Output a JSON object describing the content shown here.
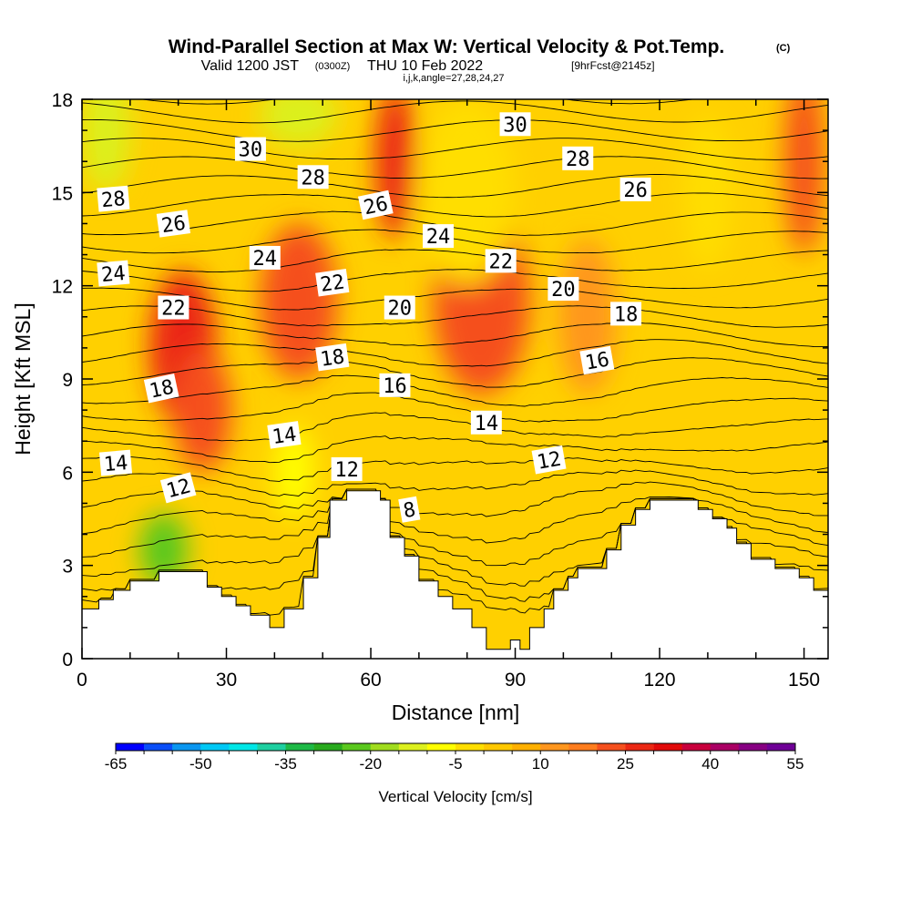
{
  "header": {
    "title": "Wind-Parallel Section at Max W: Vertical Velocity & Pot.Temp.",
    "title_units": "(C)",
    "valid_prefix": "Valid 1200 JST",
    "valid_utc": "(0300Z)",
    "valid_date": "THU 10 Feb 2022",
    "forecast": "[9hrFcst@2145z]",
    "params": "i,j,k,angle=27,28,24,27"
  },
  "colors": {
    "bands": [
      "#0000ff",
      "#0a4ef8",
      "#0a96f0",
      "#00c8f5",
      "#00e6e6",
      "#1ecfa0",
      "#1eb946",
      "#28aa1e",
      "#5ac81e",
      "#a0dc1e",
      "#dcf01e",
      "#ffff00",
      "#ffde00",
      "#ffc800",
      "#ffb000",
      "#ff961e",
      "#ff7d1e",
      "#f5501e",
      "#eb2814",
      "#e10a0a",
      "#c8003c",
      "#aa0064",
      "#870082",
      "#6e0096"
    ],
    "terrain": "#ffffff",
    "contour": "#000000"
  },
  "chart_data": {
    "type": "heatmap",
    "xlabel": "Distance [nm]",
    "ylabel": "Height [Kft MSL]",
    "xlim": [
      0,
      155
    ],
    "ylim": [
      0,
      18
    ],
    "xticks": [
      0,
      30,
      60,
      90,
      120,
      150
    ],
    "yticks": [
      0,
      3,
      6,
      9,
      12,
      15,
      18
    ],
    "colorbar": {
      "label": "Vertical Velocity [cm/s]",
      "min": -65,
      "max": 55,
      "step": 5,
      "tick_values": [
        -65,
        -50,
        -35,
        -20,
        -5,
        10,
        25,
        40,
        55
      ],
      "tick_labels": [
        "-65",
        "-50",
        "-35",
        "-20",
        "-5",
        "10",
        "25",
        "40",
        "55"
      ]
    },
    "terrain_profile": [
      [
        0,
        1.6
      ],
      [
        3.5,
        1.6
      ],
      [
        3.5,
        1.9
      ],
      [
        6.5,
        1.9
      ],
      [
        6.5,
        2.2
      ],
      [
        10,
        2.2
      ],
      [
        10,
        2.5
      ],
      [
        16,
        2.5
      ],
      [
        16,
        2.8
      ],
      [
        26,
        2.8
      ],
      [
        26,
        2.3
      ],
      [
        29,
        2.3
      ],
      [
        29,
        2.0
      ],
      [
        32,
        2.0
      ],
      [
        32,
        1.7
      ],
      [
        35,
        1.7
      ],
      [
        35,
        1.4
      ],
      [
        39,
        1.4
      ],
      [
        39,
        1.0
      ],
      [
        42,
        1.0
      ],
      [
        42,
        1.6
      ],
      [
        46,
        1.6
      ],
      [
        46,
        2.6
      ],
      [
        49,
        2.6
      ],
      [
        49,
        3.9
      ],
      [
        51.5,
        3.9
      ],
      [
        51.5,
        5.1
      ],
      [
        55,
        5.1
      ],
      [
        55,
        5.4
      ],
      [
        62,
        5.4
      ],
      [
        62,
        5.1
      ],
      [
        64,
        5.1
      ],
      [
        64,
        3.9
      ],
      [
        67,
        3.9
      ],
      [
        67,
        3.3
      ],
      [
        70,
        3.3
      ],
      [
        70,
        2.5
      ],
      [
        74,
        2.5
      ],
      [
        74,
        2.0
      ],
      [
        77,
        2.0
      ],
      [
        77,
        1.6
      ],
      [
        81,
        1.6
      ],
      [
        81,
        1.0
      ],
      [
        84,
        1.0
      ],
      [
        84,
        0.3
      ],
      [
        89,
        0.3
      ],
      [
        89,
        0.6
      ],
      [
        91,
        0.6
      ],
      [
        91,
        0.3
      ],
      [
        93,
        0.3
      ],
      [
        93,
        1.0
      ],
      [
        96,
        1.0
      ],
      [
        96,
        1.6
      ],
      [
        98,
        1.6
      ],
      [
        98,
        2.2
      ],
      [
        101,
        2.2
      ],
      [
        101,
        2.6
      ],
      [
        103,
        2.6
      ],
      [
        103,
        2.9
      ],
      [
        109,
        2.9
      ],
      [
        109,
        3.5
      ],
      [
        112,
        3.5
      ],
      [
        112,
        4.3
      ],
      [
        115,
        4.3
      ],
      [
        115,
        4.8
      ],
      [
        118,
        4.8
      ],
      [
        118,
        5.1
      ],
      [
        128,
        5.1
      ],
      [
        128,
        4.8
      ],
      [
        131,
        4.8
      ],
      [
        131,
        4.5
      ],
      [
        134,
        4.5
      ],
      [
        134,
        4.2
      ],
      [
        136,
        4.2
      ],
      [
        136,
        3.7
      ],
      [
        139,
        3.7
      ],
      [
        139,
        3.2
      ],
      [
        144,
        3.2
      ],
      [
        144,
        2.9
      ],
      [
        149,
        2.9
      ],
      [
        149,
        2.6
      ],
      [
        152,
        2.6
      ],
      [
        152,
        2.2
      ],
      [
        155,
        2.2
      ]
    ],
    "field_features": [
      {
        "name": "updraft",
        "x": 21,
        "y": 10.0,
        "rx": 7,
        "ry": 2.5,
        "value": 28
      },
      {
        "name": "updraft",
        "x": 25,
        "y": 8.0,
        "rx": 6,
        "ry": 2.0,
        "value": 20
      },
      {
        "name": "updraft",
        "x": 45,
        "y": 11.5,
        "rx": 8,
        "ry": 2.5,
        "value": 20
      },
      {
        "name": "updraft",
        "x": 65,
        "y": 16.0,
        "rx": 4,
        "ry": 2.5,
        "value": 25
      },
      {
        "name": "updraft",
        "x": 83,
        "y": 11.5,
        "rx": 10,
        "ry": 3.0,
        "value": 20
      },
      {
        "name": "updraft",
        "x": 105,
        "y": 11.0,
        "rx": 6,
        "ry": 2.5,
        "value": 14
      },
      {
        "name": "updraft",
        "x": 150,
        "y": 16.0,
        "rx": 4,
        "ry": 3.0,
        "value": 20
      },
      {
        "name": "downdraft",
        "x": 17,
        "y": 3.5,
        "rx": 5,
        "ry": 1.2,
        "value": -25
      },
      {
        "name": "downdraft",
        "x": 5,
        "y": 17.0,
        "rx": 5,
        "ry": 2.0,
        "value": -12
      },
      {
        "name": "downdraft",
        "x": 45,
        "y": 17.5,
        "rx": 8,
        "ry": 1.0,
        "value": -14
      },
      {
        "name": "downdraft",
        "x": 80,
        "y": 15.0,
        "rx": 10,
        "ry": 3.0,
        "value": -5
      },
      {
        "name": "downdraft",
        "x": 130,
        "y": 15.0,
        "rx": 5,
        "ry": 2.5,
        "value": -5
      },
      {
        "name": "downdraft",
        "x": 44,
        "y": 6.0,
        "rx": 4,
        "ry": 1.5,
        "value": -8
      }
    ],
    "isentrope_values": [
      4,
      5,
      6,
      7,
      8,
      9,
      10,
      11,
      12,
      13,
      14,
      15,
      16,
      17,
      18,
      19,
      20,
      21,
      22,
      23,
      24,
      25,
      26,
      27,
      28,
      29,
      30,
      31
    ],
    "contour_labels": [
      {
        "text": "30",
        "x": 35,
        "y": 16.4,
        "angle": 0
      },
      {
        "text": "28",
        "x": 48,
        "y": 15.5,
        "angle": 0
      },
      {
        "text": "28",
        "x": 6.5,
        "y": 14.8,
        "angle": -5
      },
      {
        "text": "26",
        "x": 19,
        "y": 14.0,
        "angle": -8
      },
      {
        "text": "26",
        "x": 61,
        "y": 14.6,
        "angle": -12
      },
      {
        "text": "30",
        "x": 90,
        "y": 17.2,
        "angle": 0
      },
      {
        "text": "28",
        "x": 103,
        "y": 16.1,
        "angle": 0
      },
      {
        "text": "26",
        "x": 115,
        "y": 15.1,
        "angle": 0
      },
      {
        "text": "24",
        "x": 6.5,
        "y": 12.4,
        "angle": -5
      },
      {
        "text": "24",
        "x": 38,
        "y": 12.9,
        "angle": 0
      },
      {
        "text": "24",
        "x": 74,
        "y": 13.6,
        "angle": 0
      },
      {
        "text": "22",
        "x": 19,
        "y": 11.3,
        "angle": 0
      },
      {
        "text": "22",
        "x": 52,
        "y": 12.1,
        "angle": -8
      },
      {
        "text": "22",
        "x": 87,
        "y": 12.8,
        "angle": 0
      },
      {
        "text": "20",
        "x": 66,
        "y": 11.3,
        "angle": 0
      },
      {
        "text": "20",
        "x": 100,
        "y": 11.9,
        "angle": 0
      },
      {
        "text": "18",
        "x": 113,
        "y": 11.1,
        "angle": 0
      },
      {
        "text": "18",
        "x": 52,
        "y": 9.7,
        "angle": -8
      },
      {
        "text": "18",
        "x": 16.5,
        "y": 8.7,
        "angle": -12
      },
      {
        "text": "16",
        "x": 65,
        "y": 8.8,
        "angle": 0
      },
      {
        "text": "16",
        "x": 107,
        "y": 9.6,
        "angle": -10
      },
      {
        "text": "14",
        "x": 84,
        "y": 7.6,
        "angle": 0
      },
      {
        "text": "14",
        "x": 42,
        "y": 7.2,
        "angle": -8
      },
      {
        "text": "14",
        "x": 7,
        "y": 6.3,
        "angle": -5
      },
      {
        "text": "12",
        "x": 55,
        "y": 6.1,
        "angle": 0
      },
      {
        "text": "12",
        "x": 97,
        "y": 6.4,
        "angle": -10
      },
      {
        "text": "12",
        "x": 20,
        "y": 5.5,
        "angle": -15
      },
      {
        "text": "8",
        "x": 68,
        "y": 4.8,
        "angle": -10
      }
    ]
  }
}
